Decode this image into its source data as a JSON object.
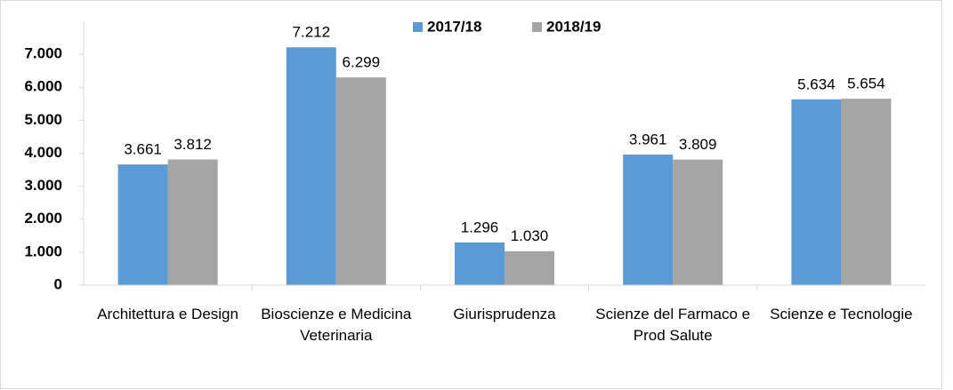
{
  "chart_data": {
    "type": "bar",
    "categories": [
      "Architettura e Design",
      "Bioscienze e Medicina Veterinaria",
      "Giurisprudenza",
      "Scienze del Farmaco e Prod Salute",
      "Scienze e Tecnologie"
    ],
    "series": [
      {
        "name": "2017/18",
        "color": "#5b9bd5",
        "values": [
          3661,
          7212,
          1296,
          3961,
          5634
        ],
        "value_labels": [
          "3.661",
          "7.212",
          "1.296",
          "3.961",
          "5.634"
        ]
      },
      {
        "name": "2018/19",
        "color": "#a5a5a5",
        "values": [
          3812,
          6299,
          1030,
          3809,
          5654
        ],
        "value_labels": [
          "3.812",
          "6.299",
          "1.030",
          "3.809",
          "5.654"
        ]
      }
    ],
    "ylim": [
      0,
      8000
    ],
    "yticks": [
      0,
      {
        "value": 1000,
        "label": "1.000"
      },
      {
        "value": 2000,
        "label": "2.000"
      },
      {
        "value": 3000,
        "label": "3.000"
      },
      {
        "value": 4000,
        "label": "4.000"
      },
      {
        "value": 5000,
        "label": "5.000"
      },
      {
        "value": 6000,
        "label": "6.000"
      },
      {
        "value": 7000,
        "label": "7.000"
      }
    ],
    "grid": false,
    "legend": "top"
  }
}
